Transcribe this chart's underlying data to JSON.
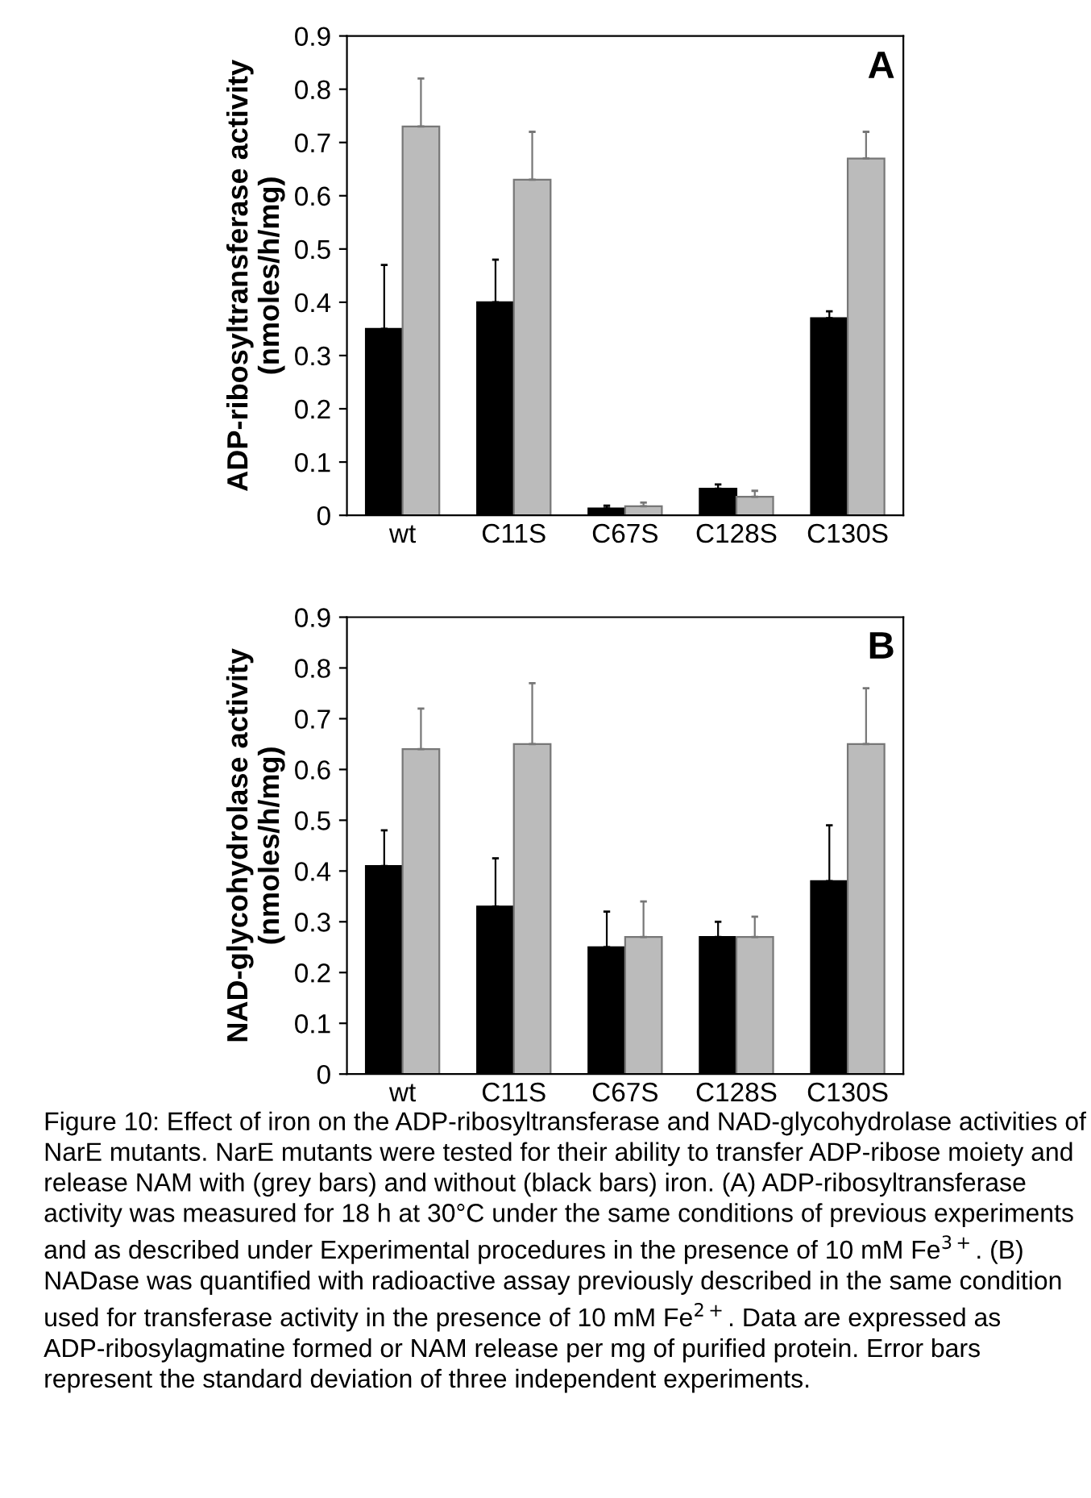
{
  "chart_data": [
    {
      "type": "bar",
      "ylabel": "ADP-ribosyltransferase activity\n(nmoles/h/mg)",
      "categories": [
        "wt",
        "C11S",
        "C67S",
        "C128S",
        "C130S"
      ],
      "series": [
        {
          "color": "#000000",
          "values": [
            0.35,
            0.4,
            0.013,
            0.05,
            0.37
          ],
          "errors": [
            [
              0.35,
              0.47
            ],
            [
              0.4,
              0.48
            ],
            [
              0.013,
              0.018
            ],
            [
              0.05,
              0.058
            ],
            [
              0.37,
              0.383
            ]
          ]
        },
        {
          "color": "#bbbbbb",
          "values": [
            0.73,
            0.63,
            0.017,
            0.035,
            0.67
          ],
          "errors": [
            [
              0.73,
              0.82
            ],
            [
              0.63,
              0.72
            ],
            [
              0.017,
              0.024
            ],
            [
              0.035,
              0.046
            ],
            [
              0.67,
              0.72
            ]
          ]
        }
      ],
      "ylim": [
        0,
        0.9
      ],
      "yticks": [
        0,
        0.1,
        0.2,
        0.3,
        0.4,
        0.5,
        0.6,
        0.7,
        0.8,
        0.9
      ],
      "grid": false,
      "annotations": [
        "A"
      ]
    },
    {
      "type": "bar",
      "ylabel": "NAD-glycohydrolase activity\n(nmoles/h/mg)",
      "categories": [
        "wt",
        "C11S",
        "C67S",
        "C128S",
        "C130S"
      ],
      "series": [
        {
          "color": "#000000",
          "values": [
            0.41,
            0.33,
            0.25,
            0.27,
            0.38
          ],
          "errors": [
            [
              0.41,
              0.48
            ],
            [
              0.33,
              0.425
            ],
            [
              0.25,
              0.32
            ],
            [
              0.27,
              0.3
            ],
            [
              0.38,
              0.49
            ]
          ]
        },
        {
          "color": "#bbbbbb",
          "values": [
            0.64,
            0.65,
            0.27,
            0.27,
            0.65
          ],
          "errors": [
            [
              0.64,
              0.72
            ],
            [
              0.65,
              0.77
            ],
            [
              0.27,
              0.34
            ],
            [
              0.27,
              0.31
            ],
            [
              0.65,
              0.76
            ]
          ]
        }
      ],
      "ylim": [
        0,
        0.9
      ],
      "yticks": [
        0,
        0.1,
        0.2,
        0.3,
        0.4,
        0.5,
        0.6,
        0.7,
        0.8,
        0.9
      ],
      "grid": false,
      "annotations": [
        "B",
        "Figure 10: Effect of iron on the ADP-ribosyltransferase and NAD-glycohydrolase activities of NarE mutants. NarE mutants were tested for their ability to transfer ADP-ribose moiety and release NAM with (grey bars) and without (black bars) iron. (A) ADP-ribosyltransferase activity was measured for 18 h at 30°C under the same conditions of previous experiments and as described under Experimental procedures in the presence of 10 mM Fe$^{3+}$. (B) NADase was quantified with radioactive assay previously described in the same condition used for transferase activity in the presence of 10 mM Fe$^{2+}$. Data are expressed as ADP-ribosylagmatine formed or NAM release per mg of purified protein. Error bars represent the standard deviation of three independent experiments."
      ]
    }
  ]
}
